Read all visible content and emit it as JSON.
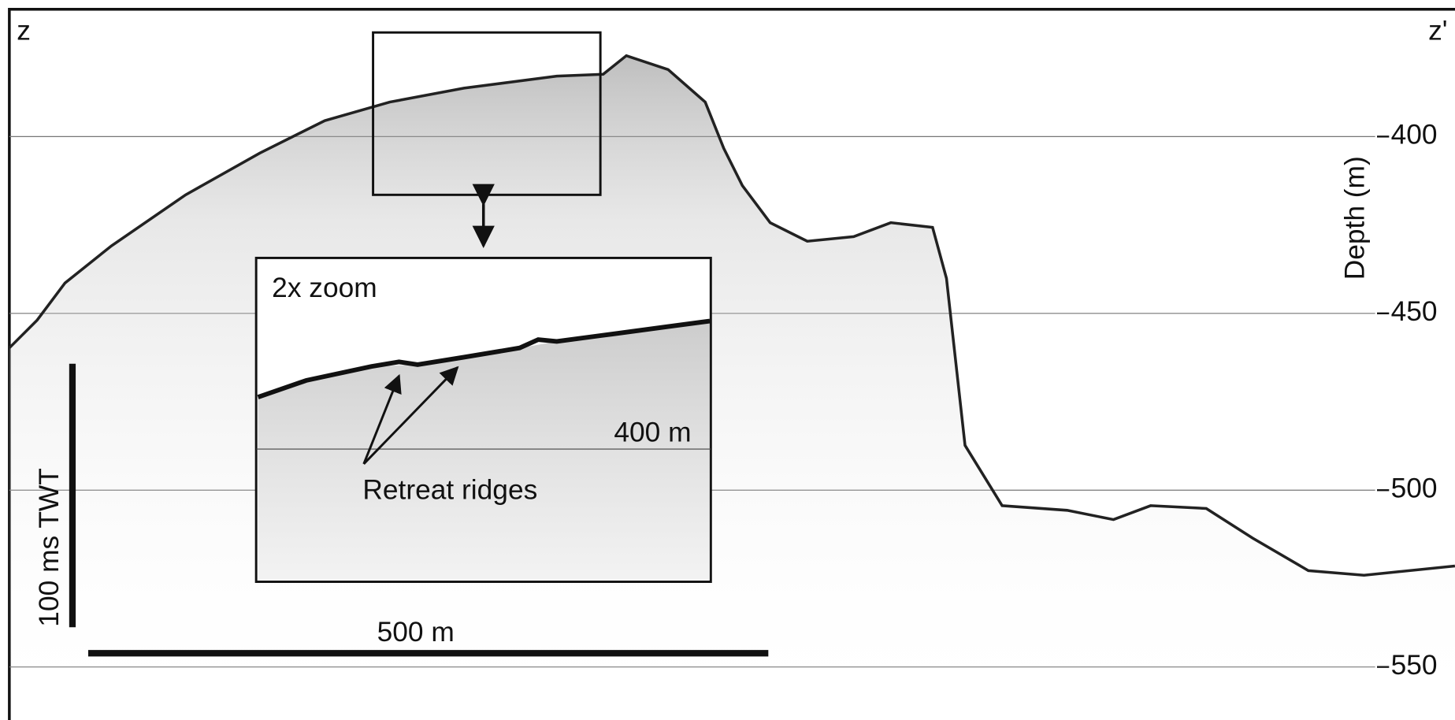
{
  "labels": {
    "start": "z",
    "end": "z'",
    "zoom": "2x zoom",
    "inset_depth": "400 m",
    "ridges": "Retreat ridges",
    "vertical_scale": "100 ms TWT",
    "horizontal_scale": "500 m"
  },
  "depth_axis": {
    "label": "Depth (m)",
    "lim": [
      364,
      565
    ],
    "ticks": [
      400,
      450,
      500,
      550
    ]
  }
}
